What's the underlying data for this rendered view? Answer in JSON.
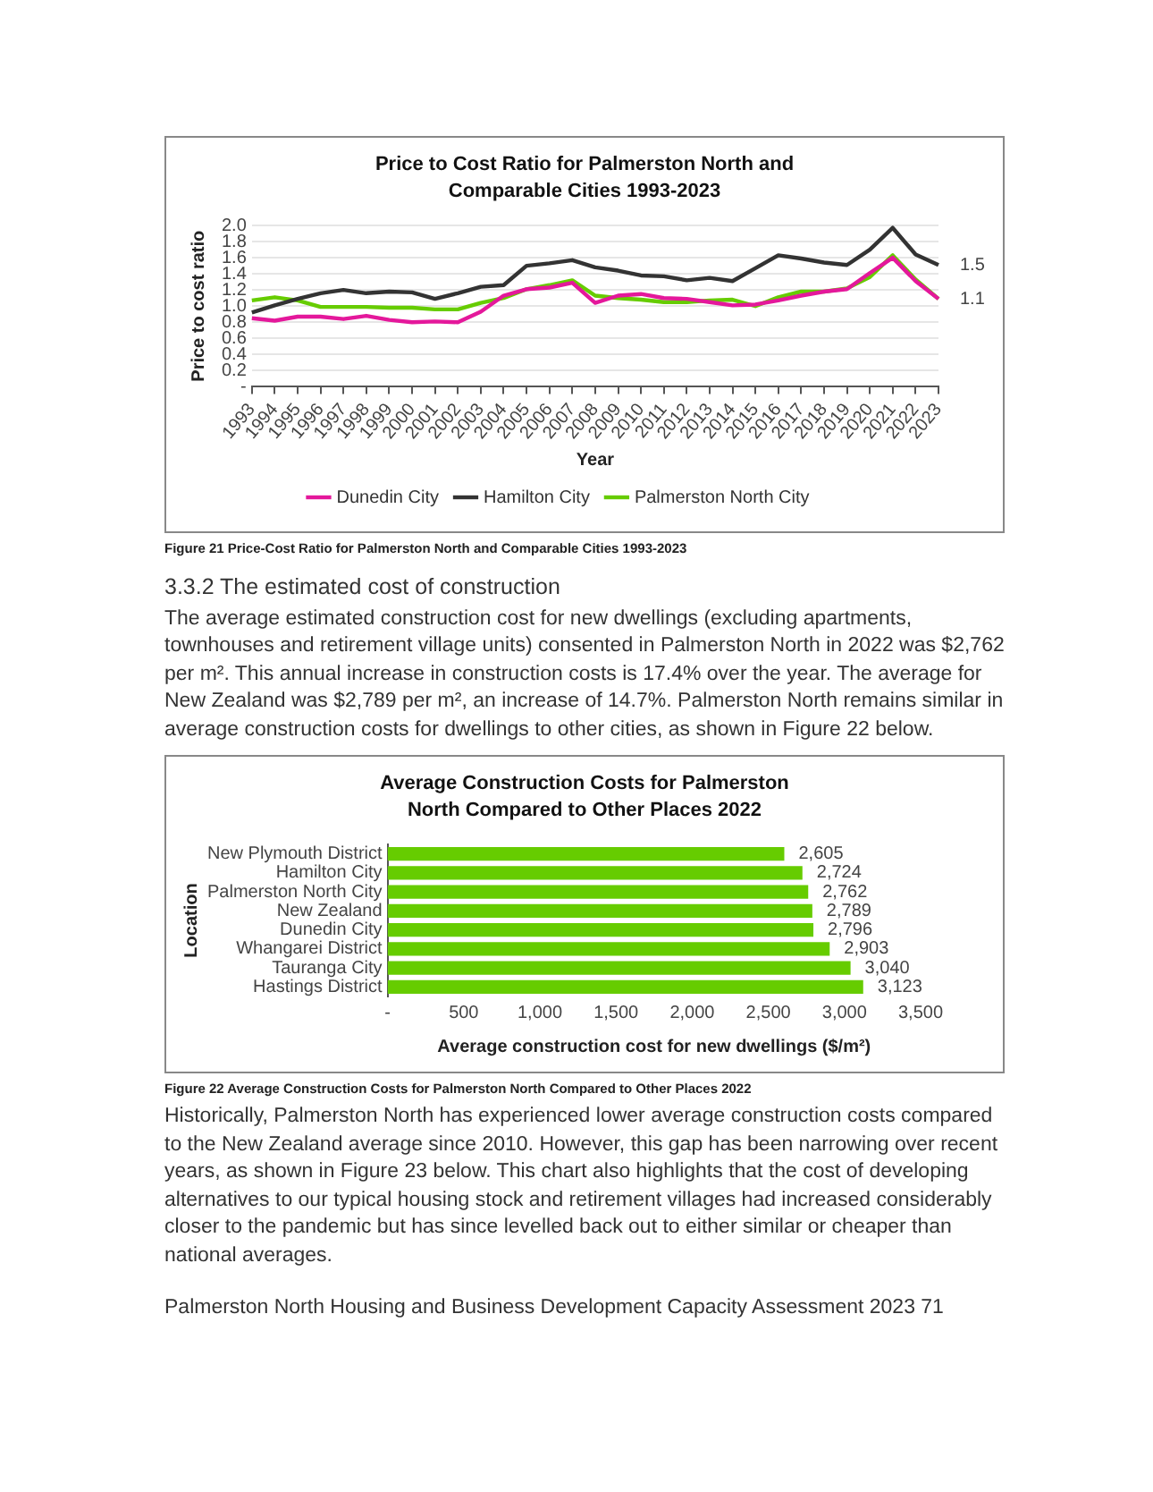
{
  "chart_data": [
    {
      "type": "line",
      "title": "Price to Cost Ratio for Palmerston North and Comparable Cities 1993-2023",
      "xlabel": "Year",
      "ylabel": "Price to cost ratio",
      "categories": [
        "1993",
        "1994",
        "1995",
        "1996",
        "1997",
        "1998",
        "1999",
        "2000",
        "2001",
        "2002",
        "2003",
        "2004",
        "2005",
        "2006",
        "2007",
        "2008",
        "2009",
        "2010",
        "2011",
        "2012",
        "2013",
        "2014",
        "2015",
        "2016",
        "2017",
        "2018",
        "2019",
        "2020",
        "2021",
        "2022",
        "2023"
      ],
      "series": [
        {
          "name": "Dunedin City",
          "color": "#e4189b",
          "values": [
            0.85,
            0.82,
            0.87,
            0.87,
            0.84,
            0.88,
            0.83,
            0.8,
            0.81,
            0.8,
            0.93,
            1.13,
            1.21,
            1.23,
            1.29,
            1.04,
            1.13,
            1.15,
            1.1,
            1.09,
            1.05,
            1.01,
            1.02,
            1.07,
            1.13,
            1.18,
            1.21,
            1.41,
            1.6,
            1.31,
            1.09
          ]
        },
        {
          "name": "Hamilton City",
          "color": "#333333",
          "values": [
            0.92,
            1.01,
            1.09,
            1.16,
            1.2,
            1.16,
            1.18,
            1.17,
            1.09,
            1.16,
            1.24,
            1.26,
            1.5,
            1.53,
            1.57,
            1.48,
            1.44,
            1.38,
            1.37,
            1.32,
            1.35,
            1.31,
            1.47,
            1.63,
            1.59,
            1.54,
            1.51,
            1.7,
            1.97,
            1.64,
            1.51
          ]
        },
        {
          "name": "Palmerston North City",
          "color": "#66cc00",
          "values": [
            1.07,
            1.11,
            1.07,
            0.99,
            0.99,
            0.99,
            0.98,
            0.98,
            0.96,
            0.96,
            1.04,
            1.1,
            1.21,
            1.26,
            1.32,
            1.13,
            1.1,
            1.08,
            1.05,
            1.05,
            1.07,
            1.08,
            1.0,
            1.11,
            1.18,
            1.18,
            1.22,
            1.36,
            1.63,
            1.33,
            1.09
          ]
        }
      ],
      "ylim": [
        0,
        2
      ],
      "yticks": [
        {
          "value": 0,
          "label": "-"
        },
        0.2,
        0.4,
        0.6,
        0.8,
        {
          "value": 1,
          "label": "1.0"
        },
        1.2,
        1.4,
        1.6,
        1.8,
        {
          "value": 2,
          "label": "2.0"
        }
      ],
      "grid": "y",
      "legend": "bottom",
      "marker": "none",
      "line_style": "solid",
      "annotations": [
        {
          "text": "1.5",
          "x": "2023",
          "y": 1.51
        },
        {
          "text": "1.1",
          "x": "2023",
          "y": 1.09
        },
        "Figure 21 Price-Cost Ratio for Palmerston North and Comparable Cities 1993-2023",
        "3.3.2   The estimated cost of construction",
        "The average estimated construction cost for new dwellings (excluding apartments, townhouses and retirement village units) consented in Palmerston North in 2022 was $2,762 per m². This annual increase in construction costs is 17.4% over the year. The average for New Zealand was $2,789 per m², an increase of 14.7%. Palmerston North remains similar in average construction costs for dwellings to other cities, as shown in Figure 22 below."
      ]
    },
    {
      "type": "bar",
      "orientation": "horizontal",
      "title": "Average Construction Costs for Palmerston North Compared to Other Places 2022",
      "xlabel": "Average construction cost for new dwellings ($/m²)",
      "ylabel": "Location",
      "categories": [
        "New Plymouth District",
        "Hamilton City",
        "Palmerston North City",
        "New Zealand",
        "Dunedin City",
        "Whangarei District",
        "Tauranga City",
        "Hastings District"
      ],
      "values": [
        2605,
        2724,
        2762,
        2789,
        2796,
        2903,
        3040,
        3123
      ],
      "color": "#66cc00",
      "value_labels": [
        "2,605",
        "2,724",
        "2,762",
        "2,789",
        "2,796",
        "2,903",
        "3,040",
        "3,123"
      ],
      "xlim": [
        0,
        3500
      ],
      "xticks": [
        {
          "value": 0,
          "label": "-"
        },
        500,
        {
          "value": 1000,
          "label": "1,000"
        },
        {
          "value": 1500,
          "label": "1,500"
        },
        {
          "value": 2000,
          "label": "2,000"
        },
        {
          "value": 2500,
          "label": "2,500"
        },
        {
          "value": 3000,
          "label": "3,000"
        },
        {
          "value": 3500,
          "label": "3,500"
        }
      ],
      "annotations": [
        "Figure 22 Average Construction Costs for Palmerston North Compared to Other Places 2022",
        "Historically, Palmerston North has experienced lower average construction costs compared to the New Zealand average since 2010. However, this gap has been narrowing over recent years, as shown in Figure 23 below. This chart also highlights that the cost of developing alternatives to our typical housing stock and retirement villages had increased considerably closer to the pandemic but has since levelled back out to either similar or cheaper than national averages.",
        "Palmerston North Housing and Business Development Capacity Assessment 2023   71"
      ]
    }
  ]
}
